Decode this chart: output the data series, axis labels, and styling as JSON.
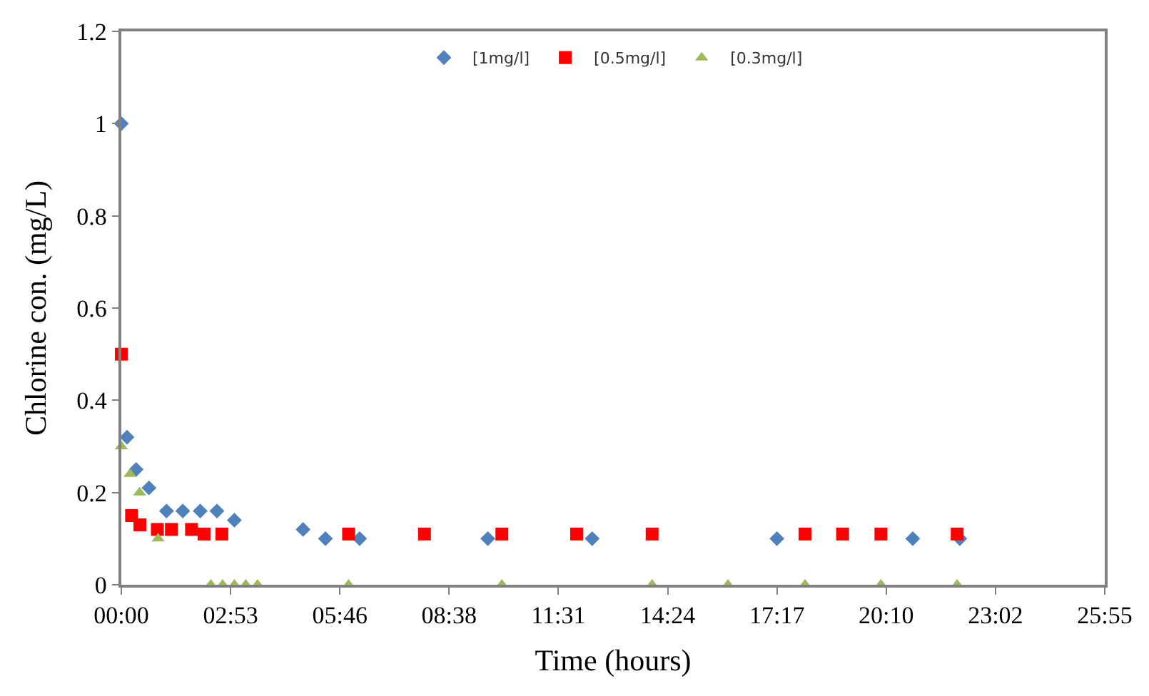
{
  "chart_data": {
    "type": "scatter",
    "xlabel": "Time (hours)",
    "ylabel": "Chlorine con. (mg/L)",
    "xlim": [
      0,
      25.92
    ],
    "xticks": [
      {
        "value": 0,
        "label": "00:00"
      },
      {
        "value": 2.88,
        "label": "02:53"
      },
      {
        "value": 5.76,
        "label": "05:46"
      },
      {
        "value": 8.64,
        "label": "08:38"
      },
      {
        "value": 11.52,
        "label": "11:31"
      },
      {
        "value": 14.4,
        "label": "14:24"
      },
      {
        "value": 17.28,
        "label": "17:17"
      },
      {
        "value": 20.16,
        "label": "20:10"
      },
      {
        "value": 23.04,
        "label": "23:02"
      },
      {
        "value": 25.92,
        "label": "25:55"
      }
    ],
    "ylim": [
      0,
      1.2
    ],
    "yticks": [
      0,
      0.2,
      0.4,
      0.6,
      0.8,
      1,
      1.2
    ],
    "legend": "top",
    "tick_labels": "xy",
    "series": [
      {
        "name": "[1mg/l]",
        "color": "#4f81bd",
        "marker": "diamond",
        "x": [
          0,
          0.15,
          0.39,
          0.73,
          1.19,
          1.62,
          2.08,
          2.52,
          2.98,
          4.79,
          5.38,
          6.28,
          9.66,
          12.41,
          17.28,
          20.86,
          22.1
        ],
        "values": [
          1.0,
          0.32,
          0.25,
          0.21,
          0.16,
          0.16,
          0.16,
          0.16,
          0.14,
          0.12,
          0.1,
          0.1,
          0.1,
          0.1,
          0.1,
          0.1,
          0.1
        ]
      },
      {
        "name": "[0.5mg/l]",
        "color": "#ff0000",
        "marker": "square",
        "x": [
          0,
          0.27,
          0.49,
          0.95,
          1.32,
          1.85,
          2.18,
          2.65,
          5.99,
          7.99,
          10.03,
          12.0,
          13.99,
          18.02,
          19.01,
          20.02,
          22.03
        ],
        "values": [
          0.5,
          0.15,
          0.13,
          0.12,
          0.12,
          0.12,
          0.11,
          0.11,
          0.11,
          0.11,
          0.11,
          0.11,
          0.11,
          0.11,
          0.11,
          0.11,
          0.11
        ]
      },
      {
        "name": "[0.3mg/l]",
        "color": "#9bbb59",
        "marker": "triangle",
        "x": [
          0,
          0.23,
          0.48,
          0.97,
          2.36,
          2.67,
          2.98,
          3.28,
          3.59,
          5.99,
          10.03,
          13.99,
          15.99,
          18.02,
          20.02,
          22.03
        ],
        "values": [
          0.3,
          0.24,
          0.2,
          0.1,
          0,
          0,
          0,
          0,
          0,
          0,
          0,
          0,
          0,
          0,
          0,
          0
        ]
      }
    ]
  }
}
